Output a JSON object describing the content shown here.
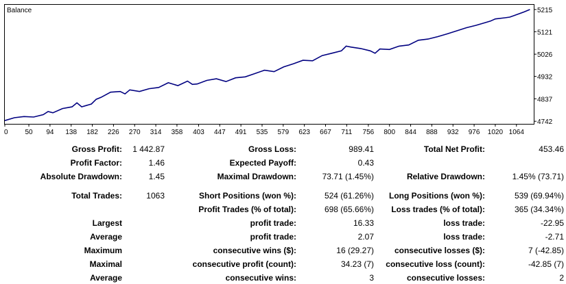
{
  "chart_data": {
    "type": "line",
    "title": "Balance",
    "x_ticks": [
      "0",
      "50",
      "94",
      "138",
      "182",
      "226",
      "270",
      "314",
      "358",
      "403",
      "447",
      "491",
      "535",
      "579",
      "623",
      "667",
      "711",
      "756",
      "800",
      "844",
      "888",
      "932",
      "976",
      "1020",
      "1064"
    ],
    "y_ticks": [
      "5215",
      "5121",
      "5026",
      "4932",
      "4837",
      "4742"
    ],
    "xlim": [
      0,
      1100
    ],
    "ylim": [
      4731,
      5235
    ],
    "grid": false,
    "series": [
      {
        "color": "#000080",
        "x": [
          0,
          20,
          40,
          60,
          80,
          90,
          100,
          120,
          140,
          150,
          160,
          180,
          190,
          200,
          220,
          240,
          250,
          260,
          280,
          300,
          320,
          340,
          360,
          380,
          390,
          400,
          420,
          440,
          460,
          480,
          500,
          520,
          540,
          560,
          580,
          600,
          620,
          640,
          660,
          680,
          700,
          710,
          720,
          740,
          760,
          770,
          780,
          800,
          820,
          840,
          860,
          880,
          900,
          920,
          940,
          960,
          980,
          1000,
          1010,
          1020,
          1040,
          1050,
          1060,
          1080,
          1092
        ],
        "y": [
          4745,
          4757,
          4762,
          4760,
          4770,
          4783,
          4778,
          4796,
          4803,
          4820,
          4803,
          4815,
          4835,
          4843,
          4865,
          4868,
          4858,
          4875,
          4868,
          4880,
          4885,
          4905,
          4893,
          4912,
          4898,
          4900,
          4915,
          4922,
          4910,
          4926,
          4930,
          4944,
          4958,
          4952,
          4972,
          4985,
          5000,
          4998,
          5020,
          5030,
          5040,
          5060,
          5056,
          5050,
          5040,
          5030,
          5048,
          5046,
          5060,
          5065,
          5085,
          5090,
          5100,
          5112,
          5125,
          5138,
          5148,
          5160,
          5166,
          5175,
          5180,
          5183,
          5190,
          5205,
          5215
        ]
      }
    ]
  },
  "stats": {
    "gross_profit_label": "Gross Profit:",
    "gross_profit": "1 442.87",
    "gross_loss_label": "Gross Loss:",
    "gross_loss": "989.41",
    "total_net_profit_label": "Total Net Profit:",
    "total_net_profit": "453.46",
    "profit_factor_label": "Profit Factor:",
    "profit_factor": "1.46",
    "expected_payoff_label": "Expected Payoff:",
    "expected_payoff": "0.43",
    "absolute_drawdown_label": "Absolute Drawdown:",
    "absolute_drawdown": "1.45",
    "maximal_drawdown_label": "Maximal Drawdown:",
    "maximal_drawdown": "73.71 (1.45%)",
    "relative_drawdown_label": "Relative Drawdown:",
    "relative_drawdown": "1.45% (73.71)",
    "total_trades_label": "Total Trades:",
    "total_trades": "1063",
    "short_positions_label": "Short Positions (won %):",
    "short_positions": "524 (61.26%)",
    "long_positions_label": "Long Positions (won %):",
    "long_positions": "539 (69.94%)",
    "profit_trades_label": "Profit Trades (% of total):",
    "profit_trades": "698 (65.66%)",
    "loss_trades_label": "Loss trades (% of total):",
    "loss_trades": "365 (34.34%)",
    "largest_label": "Largest",
    "largest_profit_label": "profit trade:",
    "largest_profit": "16.33",
    "largest_loss_label": "loss trade:",
    "largest_loss": "-22.95",
    "average_label": "Average",
    "average_profit_label": "profit trade:",
    "average_profit": "2.07",
    "average_loss_label": "loss trade:",
    "average_loss": "-2.71",
    "maximum_label": "Maximum",
    "max_consec_wins_label": "consecutive wins ($):",
    "max_consec_wins": "16 (29.27)",
    "max_consec_losses_label": "consecutive losses ($):",
    "max_consec_losses": "7 (-42.85)",
    "maximal_label": "Maximal",
    "maximal_consec_profit_label": "consecutive profit (count):",
    "maximal_consec_profit": "34.23 (7)",
    "maximal_consec_loss_label": "consecutive loss (count):",
    "maximal_consec_loss": "-42.85 (7)",
    "average2_label": "Average",
    "avg_consec_wins_label": "consecutive wins:",
    "avg_consec_wins": "3",
    "avg_consec_losses_label": "consecutive losses:",
    "avg_consec_losses": "2"
  }
}
